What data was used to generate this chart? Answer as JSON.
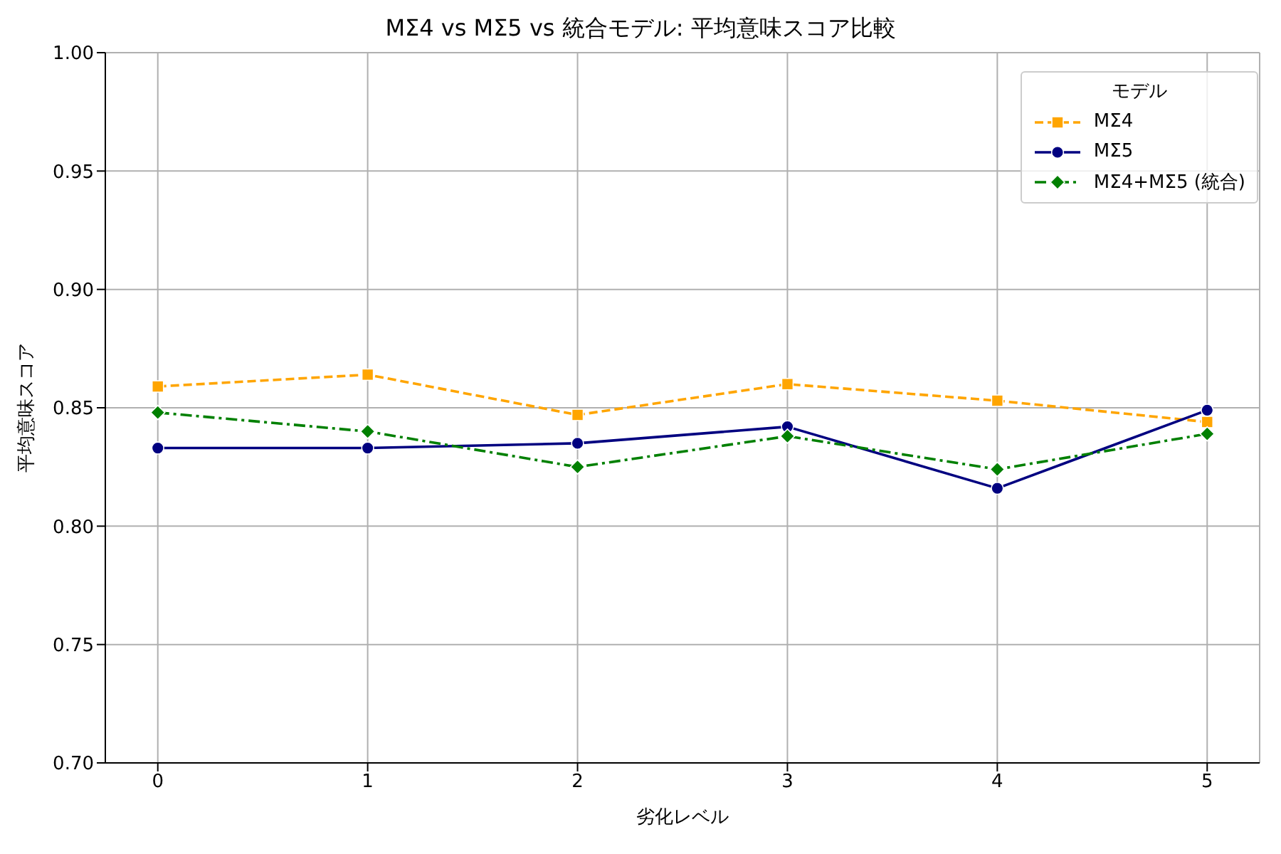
{
  "chart_data": {
    "type": "line",
    "title": "MΣ4 vs MΣ5 vs 統合モデル: 平均意味スコア比較",
    "xlabel": "劣化レベル",
    "ylabel": "平均意味スコア",
    "legend_title": "モデル",
    "x": [
      0,
      1,
      2,
      3,
      4,
      5
    ],
    "xlim": [
      -0.25,
      5.25
    ],
    "xticks": [
      0,
      1,
      2,
      3,
      4,
      5
    ],
    "ylim": [
      0.7,
      1.0
    ],
    "yticks": [
      {
        "value": 0.7,
        "label": "0.70"
      },
      0.75,
      {
        "value": 0.8,
        "label": "0.80"
      },
      0.85,
      {
        "value": 0.9,
        "label": "0.90"
      },
      0.95,
      {
        "value": 1.0,
        "label": "1.00"
      }
    ],
    "grid": true,
    "legend": "top right",
    "series": [
      {
        "name": "MΣ4",
        "color": "#ffa500",
        "marker": "square",
        "line_style": "dashed",
        "values": [
          0.859,
          0.864,
          0.847,
          0.86,
          0.853,
          0.844
        ]
      },
      {
        "name": "MΣ5",
        "color": "#000080",
        "marker": "circle",
        "line_style": "solid",
        "values": [
          0.833,
          0.833,
          0.835,
          0.842,
          0.816,
          0.849
        ]
      },
      {
        "name": "MΣ4+MΣ5 (統合)",
        "color": "#008000",
        "marker": "diamond",
        "line_style": "dashdot",
        "values": [
          0.848,
          0.84,
          0.825,
          0.838,
          0.824,
          0.839
        ]
      }
    ]
  }
}
